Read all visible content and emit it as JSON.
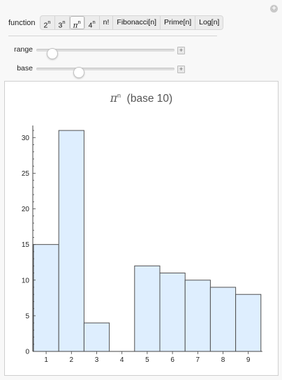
{
  "controls": {
    "function_label": "function",
    "functions": [
      {
        "base": "2",
        "sup": "n"
      },
      {
        "base": "3",
        "sup": "n"
      },
      {
        "base": "π",
        "sup": "n",
        "italic": true
      },
      {
        "base": "4",
        "sup": "n"
      },
      {
        "base": "n!",
        "sup": ""
      },
      {
        "base": "Fibonacci[n]",
        "sup": ""
      },
      {
        "base": "Prime[n]",
        "sup": ""
      },
      {
        "base": "Log[n]",
        "sup": ""
      }
    ],
    "selected_index": 2,
    "sliders": [
      {
        "label": "range",
        "value_fraction": 0.08
      },
      {
        "label": "base",
        "value_fraction": 0.29
      }
    ]
  },
  "chart_data": {
    "type": "bar",
    "title_symbol": "π",
    "title_sup": "n",
    "title_text": "(base 10)",
    "categories": [
      "1",
      "2",
      "3",
      "4",
      "5",
      "6",
      "7",
      "8",
      "9"
    ],
    "values": [
      15,
      31,
      4,
      0,
      12,
      11,
      10,
      9,
      8
    ],
    "ylim": [
      0,
      31.5
    ],
    "yticks": [
      0,
      5,
      10,
      15,
      20,
      25,
      30
    ],
    "xticks": [
      "1",
      "2",
      "3",
      "4",
      "5",
      "6",
      "7",
      "8",
      "9"
    ],
    "bar_color": "#deeefe",
    "bar_stroke": "#505050"
  }
}
